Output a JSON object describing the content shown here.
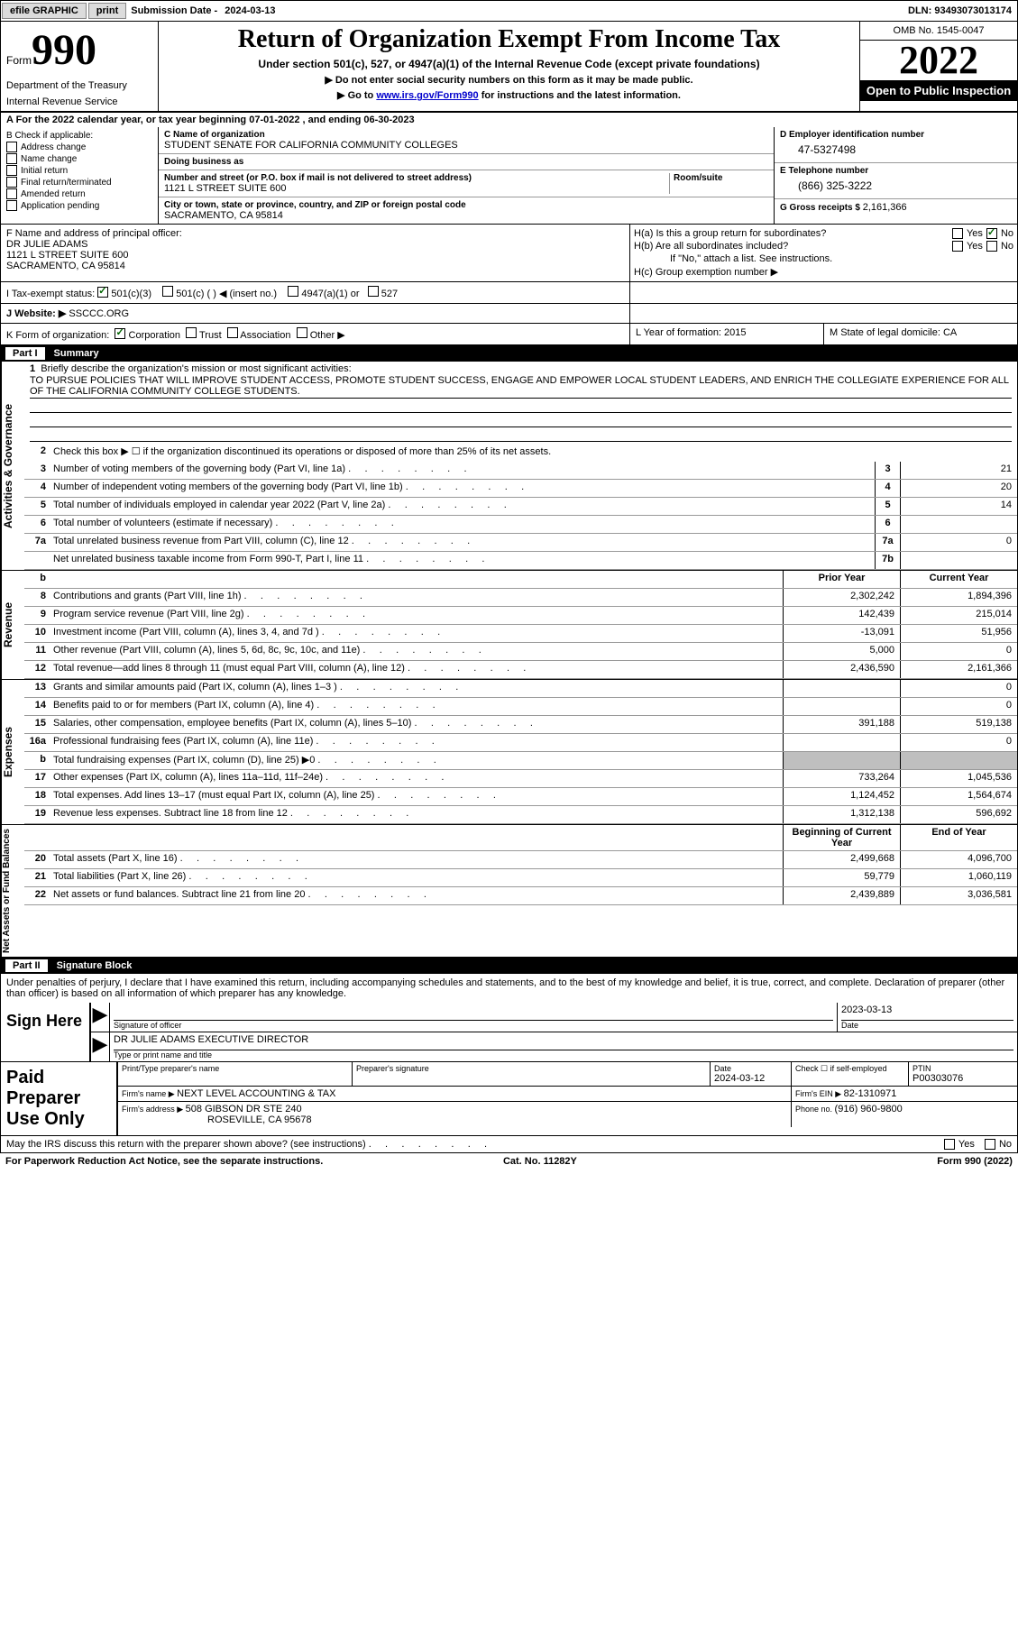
{
  "topbar": {
    "efile": "efile GRAPHIC",
    "print": "print",
    "subdate_label": "Submission Date - ",
    "subdate": "2024-03-13",
    "dln_label": "DLN: ",
    "dln": "93493073013174"
  },
  "header": {
    "form_word": "Form",
    "form_num": "990",
    "dept": "Department of the Treasury",
    "irs": "Internal Revenue Service",
    "title": "Return of Organization Exempt From Income Tax",
    "subtitle": "Under section 501(c), 527, or 4947(a)(1) of the Internal Revenue Code (except private foundations)",
    "instruct1": "▶ Do not enter social security numbers on this form as it may be made public.",
    "instruct2_pre": "▶ Go to ",
    "instruct2_link": "www.irs.gov/Form990",
    "instruct2_post": " for instructions and the latest information.",
    "omb": "OMB No. 1545-0047",
    "year": "2022",
    "inspect": "Open to Public Inspection"
  },
  "rowA": {
    "text_pre": "A For the 2022 calendar year, or tax year beginning ",
    "begin": "07-01-2022",
    "mid": "   , and ending ",
    "end": "06-30-2023"
  },
  "B": {
    "label": "B Check if applicable:",
    "items": [
      "Address change",
      "Name change",
      "Initial return",
      "Final return/terminated",
      "Amended return",
      "Application pending"
    ]
  },
  "C": {
    "name_label": "C Name of organization",
    "name": "STUDENT SENATE FOR CALIFORNIA COMMUNITY COLLEGES",
    "dba_label": "Doing business as",
    "dba": "",
    "street_label": "Number and street (or P.O. box if mail is not delivered to street address)",
    "room_label": "Room/suite",
    "street": "1121 L STREET SUITE 600",
    "city_label": "City or town, state or province, country, and ZIP or foreign postal code",
    "city": "SACRAMENTO, CA  95814"
  },
  "D": {
    "ein_label": "D Employer identification number",
    "ein": "47-5327498",
    "phone_label": "E Telephone number",
    "phone": "(866) 325-3222",
    "gross_label": "G Gross receipts $ ",
    "gross": "2,161,366"
  },
  "F": {
    "label": "F  Name and address of principal officer:",
    "name": "DR JULIE ADAMS",
    "street": "1121 L STREET SUITE 600",
    "city": "SACRAMENTO, CA  95814"
  },
  "H": {
    "a": "H(a)  Is this a group return for subordinates?",
    "b": "H(b)  Are all subordinates included?",
    "b_note": "If \"No,\" attach a list. See instructions.",
    "c": "H(c)  Group exemption number ▶",
    "yes": "Yes",
    "no": "No"
  },
  "I": {
    "label": "I   Tax-exempt status:",
    "opt1": "501(c)(3)",
    "opt2": "501(c) (   ) ◀ (insert no.)",
    "opt3": "4947(a)(1) or",
    "opt4": "527"
  },
  "J": {
    "label": "J   Website: ▶",
    "val": "  SSCCC.ORG"
  },
  "K": {
    "label": "K Form of organization:",
    "opts": [
      "Corporation",
      "Trust",
      "Association",
      "Other ▶"
    ],
    "L_label": "L Year of formation: ",
    "L_val": "2015",
    "M_label": "M State of legal domicile: ",
    "M_val": "CA"
  },
  "partI": {
    "num": "Part I",
    "title": "Summary"
  },
  "summary": {
    "side1": "Activities & Governance",
    "side2": "Revenue",
    "side3": "Expenses",
    "side4": "Net Assets or Fund Balances",
    "l1_label": "Briefly describe the organization's mission or most significant activities:",
    "l1_text": "TO PURSUE POLICIES THAT WILL IMPROVE STUDENT ACCESS, PROMOTE STUDENT SUCCESS, ENGAGE AND EMPOWER LOCAL STUDENT LEADERS, AND ENRICH THE COLLEGIATE EXPERIENCE FOR ALL OF THE CALIFORNIA COMMUNITY COLLEGE STUDENTS.",
    "l2": "Check this box ▶ ☐  if the organization discontinued its operations or disposed of more than 25% of its net assets.",
    "rows_ag": [
      {
        "n": "3",
        "d": "Number of voting members of the governing body (Part VI, line 1a)",
        "box": "3",
        "v": "21"
      },
      {
        "n": "4",
        "d": "Number of independent voting members of the governing body (Part VI, line 1b)",
        "box": "4",
        "v": "20"
      },
      {
        "n": "5",
        "d": "Total number of individuals employed in calendar year 2022 (Part V, line 2a)",
        "box": "5",
        "v": "14"
      },
      {
        "n": "6",
        "d": "Total number of volunteers (estimate if necessary)",
        "box": "6",
        "v": ""
      },
      {
        "n": "7a",
        "d": "Total unrelated business revenue from Part VIII, column (C), line 12",
        "box": "7a",
        "v": "0"
      },
      {
        "n": "",
        "d": "Net unrelated business taxable income from Form 990-T, Part I, line 11",
        "box": "7b",
        "v": ""
      }
    ],
    "py_hdr": "Prior Year",
    "cy_hdr": "Current Year",
    "rows_rev": [
      {
        "n": "8",
        "d": "Contributions and grants (Part VIII, line 1h)",
        "py": "2,302,242",
        "cy": "1,894,396"
      },
      {
        "n": "9",
        "d": "Program service revenue (Part VIII, line 2g)",
        "py": "142,439",
        "cy": "215,014"
      },
      {
        "n": "10",
        "d": "Investment income (Part VIII, column (A), lines 3, 4, and 7d )",
        "py": "-13,091",
        "cy": "51,956"
      },
      {
        "n": "11",
        "d": "Other revenue (Part VIII, column (A), lines 5, 6d, 8c, 9c, 10c, and 11e)",
        "py": "5,000",
        "cy": "0"
      },
      {
        "n": "12",
        "d": "Total revenue—add lines 8 through 11 (must equal Part VIII, column (A), line 12)",
        "py": "2,436,590",
        "cy": "2,161,366"
      }
    ],
    "rows_exp": [
      {
        "n": "13",
        "d": "Grants and similar amounts paid (Part IX, column (A), lines 1–3 )",
        "py": "",
        "cy": "0"
      },
      {
        "n": "14",
        "d": "Benefits paid to or for members (Part IX, column (A), line 4)",
        "py": "",
        "cy": "0"
      },
      {
        "n": "15",
        "d": "Salaries, other compensation, employee benefits (Part IX, column (A), lines 5–10)",
        "py": "391,188",
        "cy": "519,138"
      },
      {
        "n": "16a",
        "d": "Professional fundraising fees (Part IX, column (A), line 11e)",
        "py": "",
        "cy": "0"
      },
      {
        "n": "b",
        "d": "Total fundraising expenses (Part IX, column (D), line 25) ▶0",
        "py": "grey",
        "cy": "grey"
      },
      {
        "n": "17",
        "d": "Other expenses (Part IX, column (A), lines 11a–11d, 11f–24e)",
        "py": "733,264",
        "cy": "1,045,536"
      },
      {
        "n": "18",
        "d": "Total expenses. Add lines 13–17 (must equal Part IX, column (A), line 25)",
        "py": "1,124,452",
        "cy": "1,564,674"
      },
      {
        "n": "19",
        "d": "Revenue less expenses. Subtract line 18 from line 12",
        "py": "1,312,138",
        "cy": "596,692"
      }
    ],
    "boy_hdr": "Beginning of Current Year",
    "eoy_hdr": "End of Year",
    "rows_na": [
      {
        "n": "20",
        "d": "Total assets (Part X, line 16)",
        "py": "2,499,668",
        "cy": "4,096,700"
      },
      {
        "n": "21",
        "d": "Total liabilities (Part X, line 26)",
        "py": "59,779",
        "cy": "1,060,119"
      },
      {
        "n": "22",
        "d": "Net assets or fund balances. Subtract line 21 from line 20",
        "py": "2,439,889",
        "cy": "3,036,581"
      }
    ]
  },
  "partII": {
    "num": "Part II",
    "title": "Signature Block"
  },
  "sig": {
    "intro": "Under penalties of perjury, I declare that I have examined this return, including accompanying schedules and statements, and to the best of my knowledge and belief, it is true, correct, and complete. Declaration of preparer (other than officer) is based on all information of which preparer has any knowledge.",
    "sign_here": "Sign Here",
    "sig_label": "Signature of officer",
    "date_label": "Date",
    "sig_date": "2023-03-13",
    "name": "DR JULIE ADAMS  EXECUTIVE DIRECTOR",
    "name_label": "Type or print name and title"
  },
  "prep": {
    "label": "Paid Preparer Use Only",
    "pname_label": "Print/Type preparer's name",
    "psig_label": "Preparer's signature",
    "pdate_label": "Date",
    "pdate": "2024-03-12",
    "check_label": "Check ☐ if self-employed",
    "ptin_label": "PTIN",
    "ptin": "P00303076",
    "firm_name_label": "Firm's name     ▶ ",
    "firm_name": "NEXT LEVEL ACCOUNTING & TAX",
    "firm_ein_label": "Firm's EIN ▶ ",
    "firm_ein": "82-1310971",
    "firm_addr_label": "Firm's address ▶ ",
    "firm_addr1": "508 GIBSON DR STE 240",
    "firm_addr2": "ROSEVILLE, CA  95678",
    "phone_label": "Phone no. ",
    "phone": "(916) 960-9800"
  },
  "discuss": {
    "text": "May the IRS discuss this return with the preparer shown above? (see instructions)",
    "yes": "Yes",
    "no": "No"
  },
  "footer": {
    "left": "For Paperwork Reduction Act Notice, see the separate instructions.",
    "mid": "Cat. No. 11282Y",
    "right": "Form 990 (2022)"
  }
}
